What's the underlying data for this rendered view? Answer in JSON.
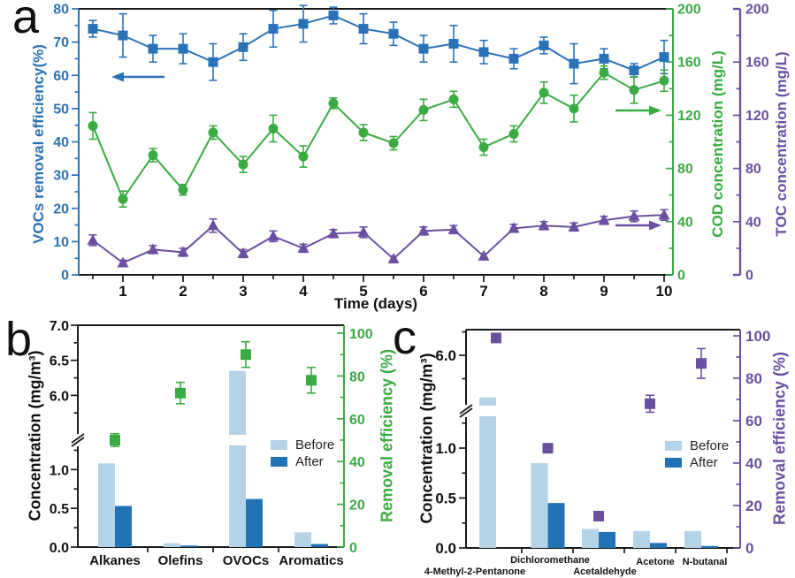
{
  "figure": {
    "panel_letters": [
      "a",
      "b",
      "c"
    ],
    "background": "#ffffff"
  },
  "colors": {
    "series_blue": "#2a72b8",
    "series_green": "#3aab42",
    "series_purple": "#6b4fa0",
    "bar_before": "#b5d3e7",
    "bar_after": "#2273b5",
    "axis_black": "#1a1a1a"
  },
  "chart_data": [
    {
      "panel": "a",
      "type": "line",
      "xlabel": "Time (days)",
      "x_ticks": [
        1,
        2,
        3,
        4,
        5,
        6,
        7,
        8,
        9,
        10
      ],
      "x": [
        0.5,
        1,
        1.5,
        2,
        2.5,
        3,
        3.5,
        4,
        4.5,
        5,
        5.5,
        6,
        6.5,
        7,
        7.5,
        8,
        8.5,
        9,
        9.5,
        10
      ],
      "y_left_ticks": [
        0,
        10,
        20,
        30,
        40,
        50,
        60,
        70,
        80
      ],
      "y_left_lim": [
        0,
        80
      ],
      "y_right_ticks": [
        0,
        40,
        80,
        120,
        160,
        200
      ],
      "y_right_lim": [
        0,
        200
      ],
      "series": [
        {
          "name": "VOCs removal efficiency(%)",
          "axis": "left",
          "marker": "square",
          "color": "#2a72b8",
          "values": [
            74,
            72,
            68,
            68,
            64,
            68.5,
            74,
            75.5,
            78,
            74,
            72.5,
            68,
            69.5,
            67,
            65,
            69,
            63.5,
            65,
            61.5,
            65.5
          ],
          "errors": [
            2.5,
            6.5,
            4,
            4.5,
            5.5,
            4,
            5.5,
            5.5,
            2.5,
            4.5,
            3.5,
            4,
            5.5,
            3.5,
            3,
            2.5,
            6,
            3,
            2,
            5
          ]
        },
        {
          "name": "COD concentration (mg/L)",
          "axis": "right",
          "marker": "circle",
          "color": "#3aab42",
          "values": [
            112,
            57,
            90,
            64,
            107,
            83,
            110,
            89,
            129,
            107,
            99,
            124,
            132,
            96,
            106,
            137,
            125,
            152,
            139,
            146
          ],
          "errors": [
            10,
            6,
            5,
            4,
            5,
            6,
            10,
            8,
            4,
            6,
            5,
            8,
            6,
            6,
            6,
            8,
            10,
            5,
            10,
            8
          ]
        },
        {
          "name": "TOC concentration (mg/L)",
          "axis": "right2",
          "marker": "triangle",
          "color": "#6b4fa0",
          "values": [
            26,
            9,
            19,
            17,
            37,
            16,
            29,
            20,
            31,
            32,
            12,
            33,
            34,
            14,
            35,
            37,
            36,
            41,
            44,
            45
          ],
          "errors": [
            4,
            2,
            3,
            3,
            5,
            3,
            4,
            3,
            3,
            4,
            2,
            3,
            3,
            2,
            3,
            3,
            3,
            3,
            4,
            4
          ]
        }
      ]
    },
    {
      "panel": "b",
      "type": "bar+scatter",
      "categories": [
        "Alkanes",
        "Olefins",
        "OVOCs",
        "Aromatics"
      ],
      "ylabel_left": "Concentration (mg/m³)",
      "ylabel_right": "Removal efficiency (%)",
      "legend": [
        "Before",
        "After"
      ],
      "y_left_lower_ticks": [
        "0.0",
        "0.5",
        "1.0"
      ],
      "y_left_upper_ticks": [
        "6.0",
        "6.5",
        "7.0"
      ],
      "y_right_ticks": [
        0,
        20,
        40,
        60,
        80,
        100
      ],
      "before": [
        1.08,
        0.05,
        6.35,
        0.19
      ],
      "after": [
        0.53,
        0.02,
        0.62,
        0.04
      ],
      "efficiency": [
        50,
        72,
        90,
        78
      ],
      "efficiency_err": [
        3,
        5,
        6,
        6
      ]
    },
    {
      "panel": "c",
      "type": "bar+scatter",
      "categories": [
        "4-Methyl-2-Pentanone",
        "Dichloromethane",
        "Acetaldehyde",
        "Acetone",
        "N-butanal"
      ],
      "ylabel_left": "Concentration (mg/m³)",
      "ylabel_right": "Removal efficiency (%)",
      "legend": [
        "Before",
        "After"
      ],
      "y_left_lower_ticks": [
        "0.0",
        "0.5",
        "1.0"
      ],
      "y_left_upper_ticks": [
        "6.0"
      ],
      "y_right_ticks": [
        0,
        20,
        40,
        60,
        80,
        100
      ],
      "before": [
        5.55,
        0.85,
        0.19,
        0.17,
        0.17
      ],
      "after": [
        0,
        0.45,
        0.16,
        0.05,
        0.02
      ],
      "efficiency": [
        99,
        47,
        15,
        68,
        87
      ],
      "efficiency_err": [
        1.5,
        2,
        2,
        4,
        7
      ]
    }
  ]
}
